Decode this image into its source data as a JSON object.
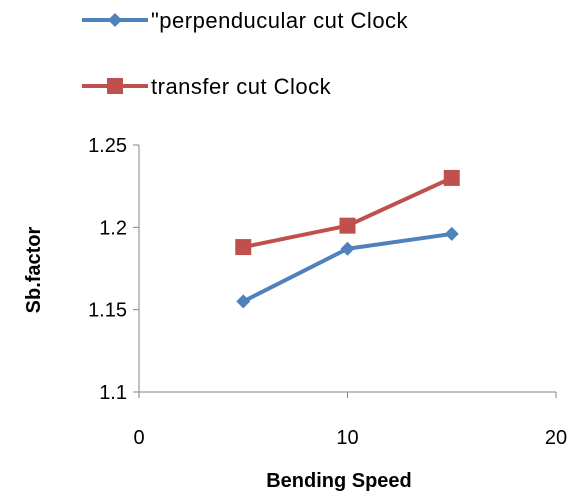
{
  "chart_data": {
    "type": "line",
    "x": [
      5,
      10,
      15
    ],
    "series": [
      {
        "name": "\"perpenducular cut Clock",
        "color": "#4f81bd",
        "marker": "diamond",
        "values": [
          1.155,
          1.187,
          1.196
        ]
      },
      {
        "name": "transfer cut Clock",
        "color": "#c0504d",
        "marker": "square",
        "values": [
          1.188,
          1.201,
          1.23
        ]
      }
    ],
    "xlabel": "Bending Speed",
    "ylabel": "Sb.factor",
    "xlim": [
      0,
      20
    ],
    "ylim": [
      1.1,
      1.25
    ],
    "xticks": [
      "0",
      "10",
      "20"
    ],
    "yticks": [
      "1.1",
      "1.15",
      "1.2",
      "1.25"
    ],
    "grid": false,
    "legend_position": "top"
  }
}
